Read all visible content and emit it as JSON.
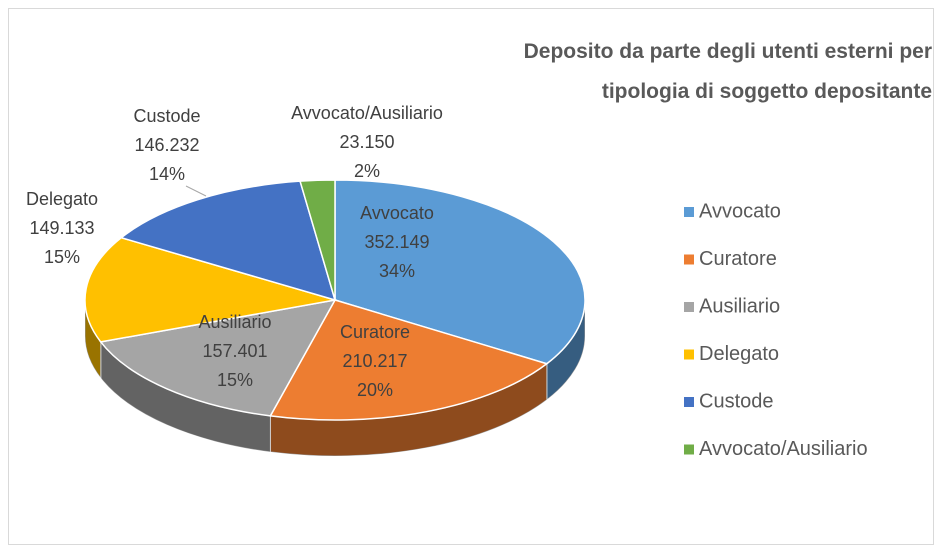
{
  "chart_data": {
    "type": "pie3d",
    "title": "Deposito da parte degli utenti esterni per tipologia di soggetto depositante",
    "categories": [
      "Avvocato",
      "Curatore",
      "Ausiliario",
      "Delegato",
      "Custode",
      "Avvocato/Ausiliario"
    ],
    "values": [
      352149,
      210217,
      157401,
      149133,
      146232,
      23150
    ],
    "value_labels": [
      "352.149",
      "210.217",
      "157.401",
      "149.133",
      "146.232",
      "23.150"
    ],
    "percentages": [
      34,
      20,
      15,
      15,
      14,
      2
    ],
    "percentage_labels": [
      "34%",
      "20%",
      "15%",
      "15%",
      "14%",
      "2%"
    ],
    "colors": [
      "#5b9bd5",
      "#ed7d31",
      "#a5a5a5",
      "#ffc000",
      "#4472c4",
      "#70ad47"
    ],
    "legend": "right"
  }
}
